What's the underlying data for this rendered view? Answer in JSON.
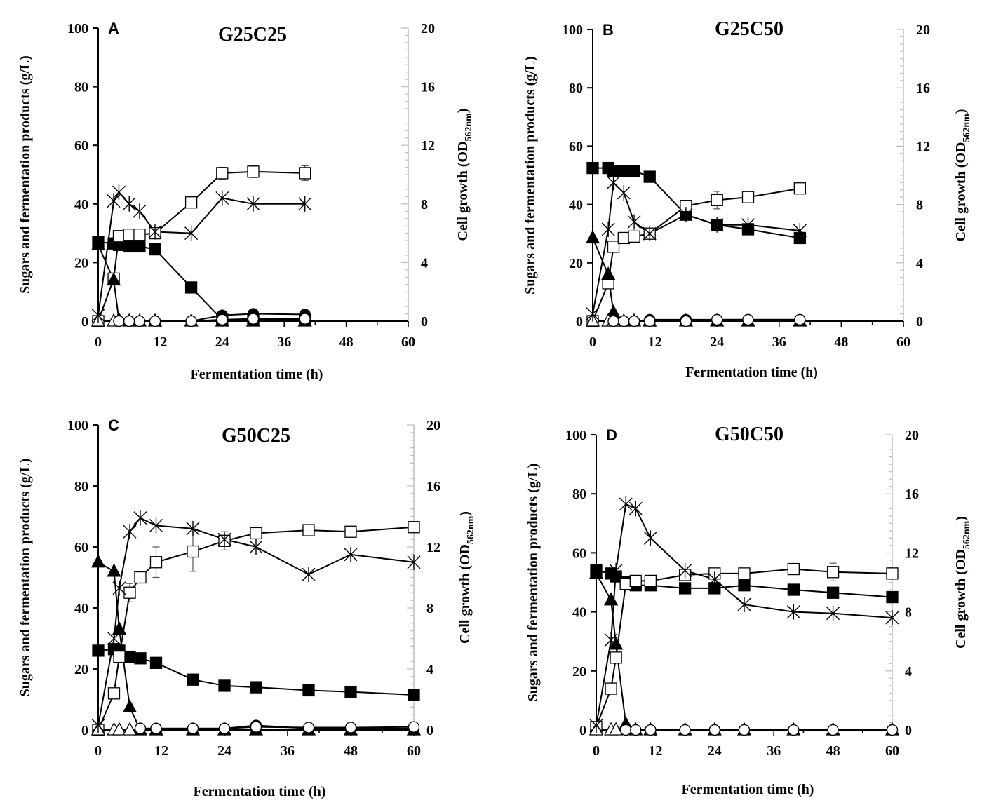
{
  "shared": {
    "xlabel": "Fermentation time (h)",
    "ylabel_left": "Sugars and fermentation products (g/L)",
    "ylabel_right_main": "Cell growth (OD",
    "ylabel_right_sub": "562nm",
    "ylabel_right_close": ")"
  },
  "chart_data": [
    {
      "type": "line",
      "panel": "A",
      "title": "G25C25",
      "xlabel": "Fermentation time (h)",
      "ylabel": "Sugars and fermentation products (g/L)",
      "y2label": "Cell growth (OD562nm)",
      "xlim": [
        0,
        60
      ],
      "ylim": [
        0,
        100
      ],
      "y2lim": [
        0,
        20
      ],
      "xticks": [
        0,
        12,
        24,
        36,
        48,
        60
      ],
      "yticks": [
        0,
        20,
        40,
        60,
        80,
        100
      ],
      "y2ticks": [
        0,
        4,
        8,
        12,
        16,
        20
      ],
      "series": [
        {
          "name": "filled-square",
          "marker": "square",
          "fill": "black",
          "axis": "left",
          "x": [
            0,
            3,
            4,
            6,
            8,
            11,
            18,
            24,
            30,
            40
          ],
          "values": [
            27,
            26.5,
            26,
            25.5,
            25.5,
            24.5,
            11.5,
            0.5,
            0.5,
            0.5
          ]
        },
        {
          "name": "open-square",
          "marker": "square",
          "fill": "white",
          "axis": "left",
          "x": [
            0,
            3,
            4,
            6,
            8,
            11,
            18,
            24,
            30,
            40
          ],
          "values": [
            0,
            14.5,
            29,
            29.5,
            29.5,
            30,
            40.5,
            50.5,
            51,
            50.5
          ],
          "err": [
            0,
            0,
            0,
            0,
            0,
            0,
            0,
            2,
            2,
            2.5
          ]
        },
        {
          "name": "filled-triangle",
          "marker": "triangle",
          "fill": "black",
          "axis": "left",
          "x": [
            0,
            3,
            4,
            6,
            8,
            11,
            18,
            24,
            30,
            40
          ],
          "values": [
            26,
            14,
            0.5,
            0,
            0,
            0,
            0,
            0,
            0,
            0
          ]
        },
        {
          "name": "open-triangle",
          "marker": "triangle",
          "fill": "white",
          "axis": "left",
          "x": [
            0,
            3
          ],
          "values": [
            0,
            0
          ]
        },
        {
          "name": "filled-circle",
          "marker": "circle",
          "fill": "black",
          "axis": "left",
          "x": [
            4,
            6,
            8,
            11,
            18,
            24,
            30,
            40
          ],
          "values": [
            0,
            0,
            0,
            0,
            0,
            2,
            2.5,
            2.3
          ]
        },
        {
          "name": "open-circle",
          "marker": "circle",
          "fill": "white",
          "axis": "left",
          "x": [
            4,
            6,
            8,
            11,
            18,
            24,
            30,
            40
          ],
          "values": [
            0,
            0,
            0,
            0,
            0,
            0.5,
            0.8,
            0.8
          ]
        },
        {
          "name": "asterisk",
          "marker": "asterisk",
          "fill": "black",
          "axis": "right",
          "x": [
            0,
            3,
            4,
            6,
            8,
            11,
            18,
            24,
            30,
            40
          ],
          "values": [
            0.4,
            8.2,
            8.8,
            8.0,
            7.5,
            6.1,
            6.0,
            8.4,
            8.0,
            8.0
          ]
        }
      ]
    },
    {
      "type": "line",
      "panel": "B",
      "title": "G25C50",
      "xlabel": "Fermentation time (h)",
      "ylabel": "Sugars and fermentation products (g/L)",
      "y2label": "Cell growth (OD562nm)",
      "xlim": [
        0,
        60
      ],
      "ylim": [
        0,
        100
      ],
      "y2lim": [
        0,
        20
      ],
      "xticks": [
        0,
        12,
        24,
        36,
        48,
        60
      ],
      "yticks": [
        0,
        20,
        40,
        60,
        80,
        100
      ],
      "y2ticks": [
        0,
        4,
        8,
        12,
        16,
        20
      ],
      "series": [
        {
          "name": "filled-square",
          "marker": "square",
          "fill": "black",
          "axis": "left",
          "x": [
            0,
            3,
            4,
            6,
            8,
            11,
            18,
            24,
            30,
            40
          ],
          "values": [
            52.5,
            52.5,
            51.5,
            51.5,
            51.5,
            49.5,
            36.5,
            33,
            31.5,
            28.5
          ]
        },
        {
          "name": "open-square",
          "marker": "square",
          "fill": "white",
          "axis": "left",
          "x": [
            0,
            3,
            4,
            6,
            8,
            11,
            18,
            24,
            30,
            40
          ],
          "values": [
            0,
            13,
            25.5,
            28.5,
            29,
            30,
            39.5,
            41.5,
            42.5,
            45.5
          ],
          "err": [
            0,
            0,
            0,
            0,
            0,
            0,
            0,
            3,
            1,
            1
          ]
        },
        {
          "name": "filled-triangle",
          "marker": "triangle",
          "fill": "black",
          "axis": "left",
          "x": [
            0,
            3,
            4,
            6,
            8,
            11,
            18,
            24,
            30,
            40
          ],
          "values": [
            28.5,
            16,
            3,
            0,
            0,
            0,
            0,
            0,
            0,
            0
          ]
        },
        {
          "name": "open-triangle",
          "marker": "triangle",
          "fill": "white",
          "axis": "left",
          "x": [
            0,
            3,
            4
          ],
          "values": [
            0,
            0,
            0
          ]
        },
        {
          "name": "filled-circle",
          "marker": "circle",
          "fill": "black",
          "axis": "left",
          "x": [
            4,
            6,
            8,
            11,
            18,
            24,
            30,
            40
          ],
          "values": [
            0,
            0,
            0,
            0.5,
            0.5,
            0.5,
            0.5,
            0.5
          ]
        },
        {
          "name": "open-circle",
          "marker": "circle",
          "fill": "white",
          "axis": "left",
          "x": [
            4,
            6,
            8,
            11,
            18,
            24,
            30,
            40
          ],
          "values": [
            0,
            0,
            0,
            0,
            0,
            0.5,
            0.5,
            0.5
          ]
        },
        {
          "name": "asterisk",
          "marker": "asterisk",
          "fill": "black",
          "axis": "right",
          "x": [
            0,
            3,
            4,
            6,
            8,
            11,
            18,
            24,
            30,
            40
          ],
          "values": [
            0.5,
            6.3,
            9.5,
            8.8,
            6.8,
            6.0,
            7.3,
            6.6,
            6.6,
            6.2
          ]
        }
      ]
    },
    {
      "type": "line",
      "panel": "C",
      "title": "G50C25",
      "xlabel": "Fermentation time (h)",
      "ylabel": "Sugars and fermentation products (g/L)",
      "y2label": "Cell growth (OD562nm)",
      "xlim": [
        0,
        60
      ],
      "ylim": [
        0,
        100
      ],
      "y2lim": [
        0,
        20
      ],
      "xticks": [
        0,
        12,
        24,
        36,
        48,
        60
      ],
      "yticks": [
        0,
        20,
        40,
        60,
        80,
        100
      ],
      "y2ticks": [
        0,
        4,
        8,
        12,
        16,
        20
      ],
      "series": [
        {
          "name": "filled-square",
          "marker": "square",
          "fill": "black",
          "axis": "left",
          "x": [
            0,
            3,
            4,
            6,
            8,
            11,
            18,
            24,
            30,
            40,
            48,
            60
          ],
          "values": [
            26,
            26.5,
            26,
            24,
            23.5,
            22,
            16.5,
            14.5,
            14,
            13,
            12.5,
            11.5
          ]
        },
        {
          "name": "open-square",
          "marker": "square",
          "fill": "white",
          "axis": "left",
          "x": [
            0,
            3,
            4,
            6,
            8,
            11,
            18,
            24,
            30,
            40,
            48,
            60
          ],
          "values": [
            0,
            12,
            24,
            45,
            50,
            55,
            58.5,
            62,
            64.5,
            65.5,
            65,
            66.5
          ],
          "err": [
            0,
            0,
            0,
            3,
            0,
            5,
            6.5,
            3,
            0,
            0,
            0,
            0
          ]
        },
        {
          "name": "filled-triangle",
          "marker": "triangle",
          "fill": "black",
          "axis": "left",
          "x": [
            0,
            3,
            4,
            6,
            8,
            11,
            18,
            24,
            30,
            40,
            48,
            60
          ],
          "values": [
            55,
            52,
            33,
            7.5,
            0,
            0,
            0,
            0,
            0,
            0,
            0,
            0
          ]
        },
        {
          "name": "open-triangle",
          "marker": "triangle",
          "fill": "white",
          "axis": "left",
          "x": [
            0,
            3,
            4,
            6
          ],
          "values": [
            0,
            0,
            0,
            0
          ]
        },
        {
          "name": "filled-circle",
          "marker": "circle",
          "fill": "black",
          "axis": "left",
          "x": [
            8,
            11,
            18,
            24,
            30,
            40,
            48,
            60
          ],
          "values": [
            0.5,
            0.5,
            0.5,
            0.5,
            1.5,
            0.5,
            0.5,
            0.5
          ]
        },
        {
          "name": "open-circle",
          "marker": "circle",
          "fill": "white",
          "axis": "left",
          "x": [
            8,
            11,
            18,
            24,
            30,
            40,
            48,
            60
          ],
          "values": [
            0.5,
            0.5,
            0.5,
            0.5,
            1.0,
            0.8,
            0.8,
            1.0
          ]
        },
        {
          "name": "asterisk",
          "marker": "asterisk",
          "fill": "black",
          "axis": "right",
          "x": [
            0,
            3,
            4,
            6,
            8,
            11,
            18,
            24,
            30,
            40,
            48,
            60
          ],
          "values": [
            0.3,
            6.0,
            9.3,
            13.0,
            13.9,
            13.4,
            13.2,
            12.5,
            12.0,
            10.2,
            11.5,
            11.0
          ]
        }
      ]
    },
    {
      "type": "line",
      "panel": "D",
      "title": "G50C50",
      "xlabel": "Fermentation time (h)",
      "ylabel": "Sugars and fermentation products (g/L)",
      "y2label": "Cell growth (OD562nm)",
      "xlim": [
        0,
        60
      ],
      "ylim": [
        0,
        100
      ],
      "y2lim": [
        0,
        20
      ],
      "xticks": [
        0,
        12,
        24,
        36,
        48,
        60
      ],
      "yticks": [
        0,
        20,
        40,
        60,
        80,
        100
      ],
      "y2ticks": [
        0,
        4,
        8,
        12,
        16,
        20
      ],
      "series": [
        {
          "name": "filled-square",
          "marker": "square",
          "fill": "black",
          "axis": "left",
          "x": [
            0,
            3,
            4,
            6,
            8,
            11,
            18,
            24,
            30,
            40,
            48,
            60
          ],
          "values": [
            54,
            53,
            52,
            50,
            49,
            49,
            48,
            48,
            49,
            47.5,
            46.5,
            45
          ]
        },
        {
          "name": "open-square",
          "marker": "square",
          "fill": "white",
          "axis": "left",
          "x": [
            0,
            3,
            4,
            6,
            8,
            11,
            18,
            24,
            30,
            40,
            48,
            60
          ],
          "values": [
            1,
            14,
            24.5,
            49.5,
            50.5,
            50.5,
            52.5,
            53,
            53,
            54.5,
            53.5,
            53
          ],
          "err": [
            0,
            0,
            0,
            0,
            0,
            0,
            0,
            0,
            0,
            0,
            3,
            0
          ]
        },
        {
          "name": "filled-triangle",
          "marker": "triangle",
          "fill": "black",
          "axis": "left",
          "x": [
            0,
            3,
            4,
            6,
            8,
            11,
            18,
            24,
            30,
            40,
            48,
            60
          ],
          "values": [
            53,
            44,
            29,
            2,
            0,
            0,
            0,
            0,
            0,
            0,
            0,
            0
          ]
        },
        {
          "name": "open-triangle",
          "marker": "triangle",
          "fill": "white",
          "axis": "left",
          "x": [
            0,
            3,
            4
          ],
          "values": [
            0,
            0,
            0
          ]
        },
        {
          "name": "filled-circle",
          "marker": "circle",
          "fill": "black",
          "axis": "left",
          "x": [
            6,
            8,
            11,
            18,
            24,
            30,
            40,
            48,
            60
          ],
          "values": [
            0,
            0,
            0,
            0,
            0,
            0,
            0,
            0,
            0
          ]
        },
        {
          "name": "open-circle",
          "marker": "circle",
          "fill": "white",
          "axis": "left",
          "x": [
            6,
            8,
            11,
            18,
            24,
            30,
            40,
            48,
            60
          ],
          "values": [
            0,
            0,
            0,
            0,
            0,
            0,
            0,
            0,
            0
          ]
        },
        {
          "name": "asterisk",
          "marker": "asterisk",
          "fill": "black",
          "axis": "right",
          "x": [
            0,
            3,
            4,
            6,
            8,
            11,
            18,
            24,
            30,
            40,
            48,
            60
          ],
          "values": [
            0.3,
            6.1,
            10.8,
            15.3,
            15.0,
            13.0,
            10.8,
            10.2,
            8.5,
            8.0,
            7.9,
            7.6
          ]
        }
      ]
    }
  ]
}
